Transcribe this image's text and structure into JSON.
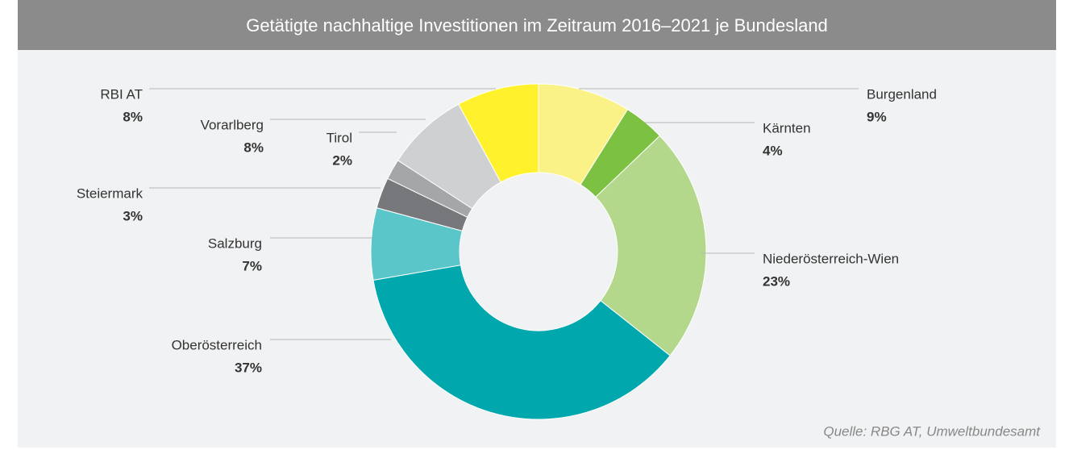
{
  "chart_data": {
    "type": "donut",
    "title": "Getätigte nachhaltige Investitionen im Zeitraum 2016–2021 je Bundesland",
    "source": "Quelle: RBG AT, Umweltbundesamt",
    "categories": [
      "Burgenland",
      "Kärnten",
      "Niederösterreich-Wien",
      "Oberösterreich",
      "Salzburg",
      "Steiermark",
      "Tirol",
      "Vorarlberg",
      "RBI AT"
    ],
    "values": [
      9,
      4,
      23,
      37,
      7,
      3,
      2,
      8,
      8
    ],
    "value_labels": [
      "9%",
      "4%",
      "23%",
      "37%",
      "7%",
      "3%",
      "2%",
      "8%",
      "8%"
    ],
    "colors": [
      "#fbf287",
      "#7dc142",
      "#b3d88c",
      "#00a8ad",
      "#5bc6c9",
      "#77787b",
      "#a4a6a8",
      "#cfd0d2",
      "#fff22d"
    ]
  }
}
